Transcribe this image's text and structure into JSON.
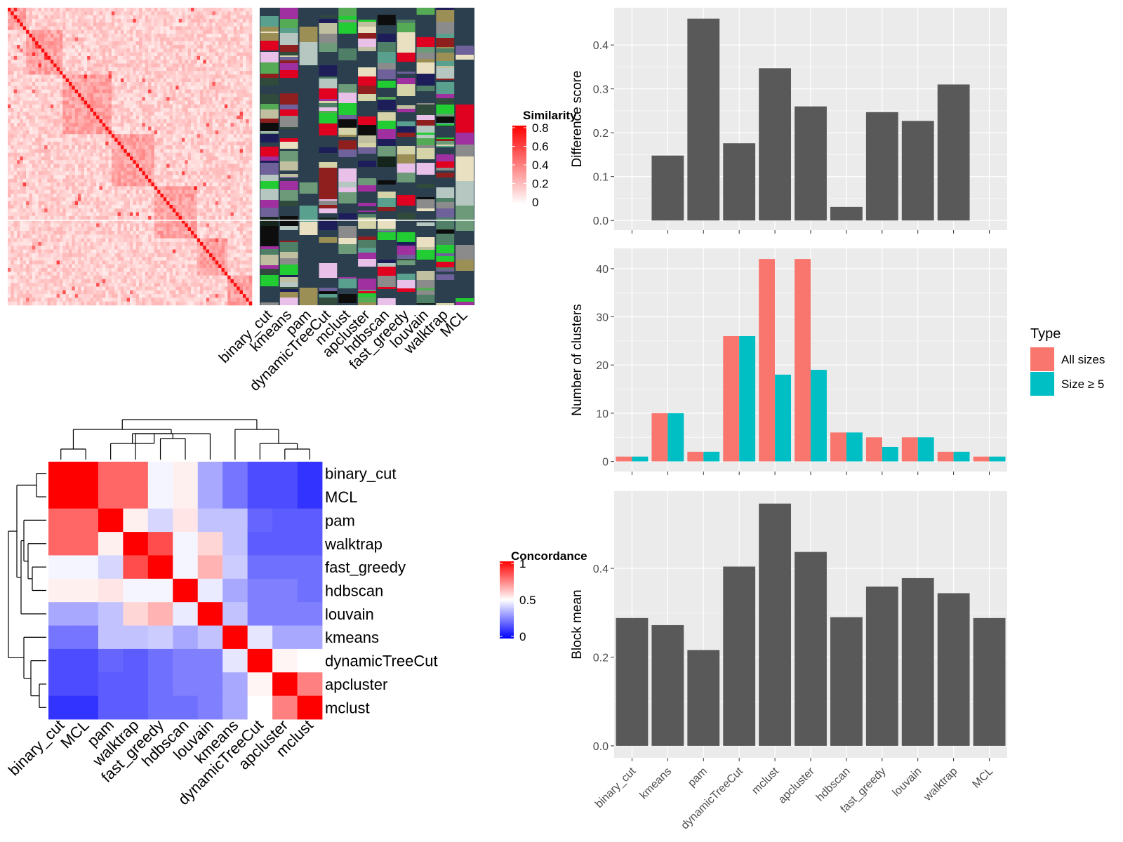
{
  "colors": {
    "panel_bg": "#ebebeb",
    "grid": "#ffffff",
    "bar_dark": "#595959",
    "all_sizes": "#f8766d",
    "size_ge5": "#00bfc4",
    "heat_red": "#ff0000",
    "heat_white": "#ffffff",
    "heat_blue": "#0000ff",
    "track_bg": "#2b3f4e"
  },
  "similarity": {
    "legend_title": "Similarity",
    "legend_ticks": [
      "0.8",
      "0.6",
      "0.4",
      "0.2",
      "0"
    ],
    "track_labels": [
      "binary_cut",
      "kmeans",
      "pam",
      "dynamicTreeCut",
      "mclust",
      "apcluster",
      "hdbscan",
      "fast_greedy",
      "louvain",
      "walktrap",
      "MCL"
    ]
  },
  "concordance": {
    "legend_title": "Concordance",
    "legend_ticks": [
      "1",
      "0.5",
      "0"
    ],
    "row_labels": [
      "binary_cut",
      "MCL",
      "pam",
      "walktrap",
      "fast_greedy",
      "hdbscan",
      "louvain",
      "kmeans",
      "dynamicTreeCut",
      "apcluster",
      "mclust"
    ],
    "col_labels": [
      "binary_cut",
      "MCL",
      "pam",
      "walktrap",
      "fast_greedy",
      "hdbscan",
      "louvain",
      "kmeans",
      "dynamicTreeCut",
      "apcluster",
      "mclust"
    ],
    "matrix": [
      [
        1.0,
        1.0,
        0.8,
        0.8,
        0.48,
        0.53,
        0.33,
        0.23,
        0.15,
        0.15,
        0.1
      ],
      [
        1.0,
        1.0,
        0.8,
        0.8,
        0.48,
        0.53,
        0.33,
        0.23,
        0.15,
        0.15,
        0.1
      ],
      [
        0.8,
        0.8,
        1.0,
        0.53,
        0.42,
        0.55,
        0.38,
        0.38,
        0.2,
        0.18,
        0.18
      ],
      [
        0.8,
        0.8,
        0.53,
        1.0,
        0.85,
        0.48,
        0.58,
        0.38,
        0.18,
        0.18,
        0.18
      ],
      [
        0.48,
        0.48,
        0.42,
        0.85,
        1.0,
        0.48,
        0.65,
        0.4,
        0.22,
        0.22,
        0.22
      ],
      [
        0.53,
        0.53,
        0.55,
        0.48,
        0.48,
        1.0,
        0.46,
        0.33,
        0.25,
        0.25,
        0.22
      ],
      [
        0.33,
        0.33,
        0.38,
        0.58,
        0.65,
        0.46,
        1.0,
        0.38,
        0.25,
        0.25,
        0.25
      ],
      [
        0.23,
        0.23,
        0.38,
        0.38,
        0.4,
        0.33,
        0.38,
        1.0,
        0.45,
        0.33,
        0.33
      ],
      [
        0.15,
        0.15,
        0.2,
        0.18,
        0.22,
        0.25,
        0.25,
        0.45,
        1.0,
        0.52,
        0.5
      ],
      [
        0.15,
        0.15,
        0.18,
        0.18,
        0.22,
        0.25,
        0.25,
        0.33,
        0.52,
        1.0,
        0.75
      ],
      [
        0.1,
        0.1,
        0.18,
        0.18,
        0.22,
        0.22,
        0.25,
        0.33,
        0.5,
        0.75,
        1.0
      ]
    ]
  },
  "chart_data": [
    {
      "type": "bar",
      "ylabel": "Difference score",
      "categories": [
        "binary_cut",
        "kmeans",
        "pam",
        "dynamicTreeCut",
        "mclust",
        "apcluster",
        "hdbscan",
        "fast_greedy",
        "louvain",
        "walktrap",
        "MCL"
      ],
      "values": [
        0.0,
        0.148,
        0.46,
        0.176,
        0.347,
        0.26,
        0.031,
        0.247,
        0.227,
        0.31,
        0.0
      ],
      "ylim": [
        -0.022,
        0.485
      ],
      "yticks": [
        0.0,
        0.1,
        0.2,
        0.3,
        0.4
      ],
      "ytick_labels": [
        "0.0",
        "0.1",
        "0.2",
        "0.3",
        "0.4"
      ],
      "grid": true
    },
    {
      "type": "bar",
      "ylabel": "Number of clusters",
      "categories": [
        "binary_cut",
        "kmeans",
        "pam",
        "dynamicTreeCut",
        "mclust",
        "apcluster",
        "hdbscan",
        "fast_greedy",
        "louvain",
        "walktrap",
        "MCL"
      ],
      "series": [
        {
          "name": "All sizes",
          "values": [
            1,
            10,
            2,
            26,
            42,
            42,
            6,
            5,
            5,
            2,
            1
          ]
        },
        {
          "name": "Size ≥ 5",
          "values": [
            1,
            10,
            2,
            26,
            18,
            19,
            6,
            3,
            5,
            2,
            1
          ]
        }
      ],
      "ylim": [
        -2.1,
        44.2
      ],
      "yticks": [
        0,
        10,
        20,
        30,
        40
      ],
      "ytick_labels": [
        "0",
        "10",
        "20",
        "30",
        "40"
      ],
      "legend_title": "Type",
      "legend_position": "right",
      "grid": true
    },
    {
      "type": "bar",
      "ylabel": "Block mean",
      "categories": [
        "binary_cut",
        "kmeans",
        "pam",
        "dynamicTreeCut",
        "mclust",
        "apcluster",
        "hdbscan",
        "fast_greedy",
        "louvain",
        "walktrap",
        "MCL"
      ],
      "values": [
        0.288,
        0.272,
        0.216,
        0.404,
        0.546,
        0.437,
        0.29,
        0.359,
        0.378,
        0.344,
        0.288
      ],
      "ylim": [
        -0.027,
        0.574
      ],
      "yticks": [
        0.0,
        0.2,
        0.4
      ],
      "ytick_labels": [
        "0.0",
        "0.2",
        "0.4"
      ],
      "grid": true
    }
  ]
}
